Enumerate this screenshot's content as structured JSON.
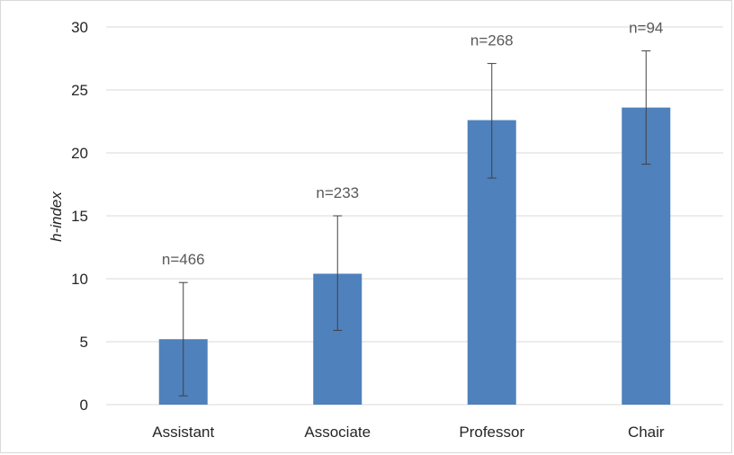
{
  "chart_data": {
    "type": "bar",
    "title": "",
    "xlabel": "",
    "ylabel": "h-index",
    "ylim": [
      0,
      30
    ],
    "yticks": [
      0,
      5,
      10,
      15,
      20,
      25,
      30
    ],
    "grid": true,
    "legend": "none",
    "bar_color": "#4f81bd",
    "categories": [
      "Assistant",
      "Associate",
      "Professor",
      "Chair"
    ],
    "values": [
      5.2,
      10.4,
      22.6,
      23.6
    ],
    "error_low": [
      0.7,
      5.9,
      18.0,
      19.1
    ],
    "error_high": [
      9.7,
      15.0,
      27.1,
      28.1
    ],
    "data_labels": [
      "n=466",
      "n=233",
      "n=268",
      "n=94"
    ]
  }
}
